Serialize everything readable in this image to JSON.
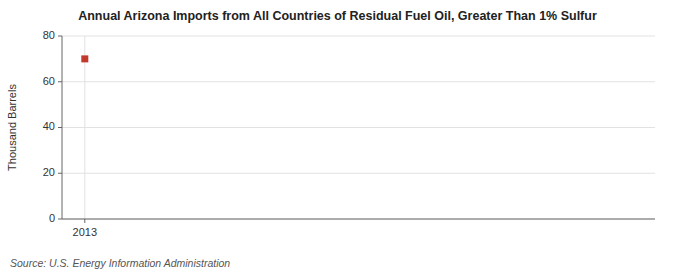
{
  "chart_data": {
    "type": "scatter",
    "title": "Annual Arizona Imports from All Countries of Residual Fuel Oil, Greater Than 1% Sulfur",
    "ylabel": "Thousand Barrels",
    "source": "Source: U.S. Energy Information Administration",
    "x": [
      2013
    ],
    "values": [
      70
    ],
    "color": "#c0392b",
    "marker": "square",
    "xlim": [
      2012.6,
      2023.0
    ],
    "ylim": [
      0,
      80
    ],
    "xticks": [
      2013
    ],
    "yticks": [
      0,
      20,
      40,
      60,
      80
    ],
    "grid": true
  }
}
